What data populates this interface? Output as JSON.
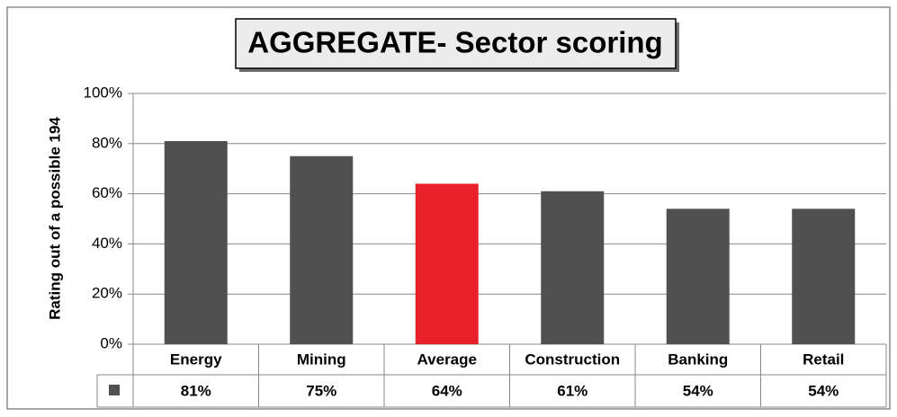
{
  "chart_data": {
    "type": "bar",
    "title": "AGGREGATE- Sector scoring",
    "y_label": "Rating out of a possible 194",
    "categories": [
      "Energy",
      "Mining",
      "Average",
      "Construction",
      "Banking",
      "Retail"
    ],
    "values": [
      81,
      75,
      64,
      61,
      54,
      54
    ],
    "value_labels": [
      "81%",
      "75%",
      "64%",
      "61%",
      "54%",
      "54%"
    ],
    "colors": [
      "#505050",
      "#505050",
      "#e8202a",
      "#505050",
      "#505050",
      "#505050"
    ],
    "ylim": [
      0,
      100
    ],
    "yticks": [
      {
        "value": 0,
        "label": "0%"
      },
      {
        "value": 20,
        "label": "20%"
      },
      {
        "value": 40,
        "label": "40%"
      },
      {
        "value": 60,
        "label": "60%"
      },
      {
        "value": 80,
        "label": "80%"
      },
      {
        "value": 100,
        "label": "100%"
      }
    ],
    "grid": true
  }
}
